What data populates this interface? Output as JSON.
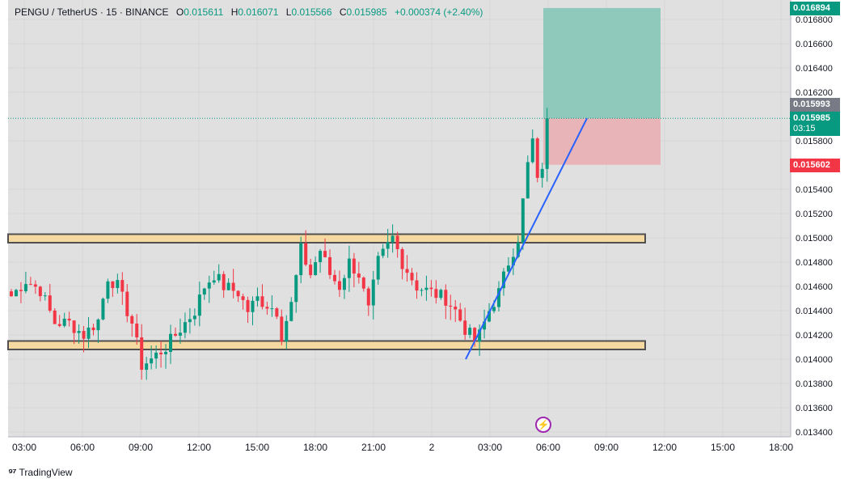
{
  "header": {
    "symbol": "PENGU / TetherUS · 15 · BINANCE",
    "o_label": "O",
    "o_value": "0.015611",
    "h_label": "H",
    "h_value": "0.016071",
    "l_label": "L",
    "l_value": "0.015566",
    "c_label": "C",
    "c_value": "0.015985",
    "change": "+0.000374 (+2.40%)"
  },
  "badges": {
    "take_profit": "0.016894",
    "high_marker": "0.015993",
    "last_price": "0.015985",
    "countdown": "03:15",
    "stop_loss": "0.015602"
  },
  "colors": {
    "up": "#089981",
    "down": "#f23645",
    "zone_fill": "#f5d9a0",
    "zone_border": "#505050",
    "profit_zone": "#8fc9bc",
    "loss_zone": "#e8b4b8",
    "trendline": "#2962ff",
    "background": "#e0e0e0"
  },
  "footer": {
    "brand": "TradingView",
    "logo_icon": "tradingview-logo-icon"
  },
  "chart_data": {
    "type": "candlestick",
    "title": "PENGU / TetherUS · 15 · BINANCE",
    "interval": "15m",
    "x_tick_labels": [
      "03:00",
      "06:00",
      "09:00",
      "12:00",
      "15:00",
      "18:00",
      "21:00",
      "2",
      "03:00",
      "06:00",
      "09:00",
      "12:00",
      "15:00",
      "18:00"
    ],
    "y_tick_labels": [
      "0.016800",
      "0.016600",
      "0.016400",
      "0.016200",
      "0.015800",
      "0.015400",
      "0.015200",
      "0.015000",
      "0.014800",
      "0.014600",
      "0.014400",
      "0.014200",
      "0.014000",
      "0.013800",
      "0.013600",
      "0.013400"
    ],
    "ylim": [
      0.01338,
      0.01704
    ],
    "candle_count": 112,
    "candle_range": [
      0.01383,
      0.01607
    ],
    "last_close": 0.015985,
    "anchors": [
      {
        "i": 0,
        "c": 0.01452
      },
      {
        "i": 3,
        "c": 0.01465
      },
      {
        "i": 6,
        "c": 0.01457
      },
      {
        "i": 9,
        "c": 0.0143
      },
      {
        "i": 12,
        "c": 0.0143
      },
      {
        "i": 15,
        "c": 0.0142
      },
      {
        "i": 18,
        "c": 0.01432
      },
      {
        "i": 20,
        "c": 0.01468
      },
      {
        "i": 22,
        "c": 0.0146
      },
      {
        "i": 25,
        "c": 0.0143
      },
      {
        "i": 27,
        "c": 0.01395
      },
      {
        "i": 29,
        "c": 0.014
      },
      {
        "i": 32,
        "c": 0.0141
      },
      {
        "i": 34,
        "c": 0.0142
      },
      {
        "i": 36,
        "c": 0.0143
      },
      {
        "i": 38,
        "c": 0.0144
      },
      {
        "i": 40,
        "c": 0.0146
      },
      {
        "i": 42,
        "c": 0.0147
      },
      {
        "i": 44,
        "c": 0.0146
      },
      {
        "i": 47,
        "c": 0.01455
      },
      {
        "i": 49,
        "c": 0.0144
      },
      {
        "i": 51,
        "c": 0.0145
      },
      {
        "i": 53,
        "c": 0.01445
      },
      {
        "i": 55,
        "c": 0.0144
      },
      {
        "i": 56,
        "c": 0.0142
      },
      {
        "i": 58,
        "c": 0.01445
      },
      {
        "i": 60,
        "c": 0.0149
      },
      {
        "i": 62,
        "c": 0.0147
      },
      {
        "i": 64,
        "c": 0.0149
      },
      {
        "i": 66,
        "c": 0.0147
      },
      {
        "i": 68,
        "c": 0.0146
      },
      {
        "i": 70,
        "c": 0.0148
      },
      {
        "i": 72,
        "c": 0.0147
      },
      {
        "i": 74,
        "c": 0.0144
      },
      {
        "i": 76,
        "c": 0.0148
      },
      {
        "i": 79,
        "c": 0.015
      },
      {
        "i": 81,
        "c": 0.0148
      },
      {
        "i": 84,
        "c": 0.0146
      },
      {
        "i": 87,
        "c": 0.01455
      },
      {
        "i": 90,
        "c": 0.0145
      },
      {
        "i": 92,
        "c": 0.0144
      },
      {
        "i": 94,
        "c": 0.01425
      },
      {
        "i": 96,
        "c": 0.01415
      },
      {
        "i": 97,
        "c": 0.0142
      },
      {
        "i": 99,
        "c": 0.0144
      },
      {
        "i": 101,
        "c": 0.01455
      },
      {
        "i": 103,
        "c": 0.0148
      },
      {
        "i": 105,
        "c": 0.015
      },
      {
        "i": 107,
        "c": 0.0156
      },
      {
        "i": 108,
        "c": 0.0158
      },
      {
        "i": 109,
        "c": 0.01545
      },
      {
        "i": 110,
        "c": 0.0156
      },
      {
        "i": 111,
        "c": 0.015985
      }
    ],
    "support_zone": [
      0.01408,
      0.01415
    ],
    "resistance_zone": [
      0.01496,
      0.01503
    ],
    "position": {
      "entry": 0.015985,
      "take_profit": 0.016894,
      "stop_loss": 0.015602
    },
    "trendline": {
      "from": 0.014,
      "to": 0.015985
    },
    "current_price_line": 0.015985,
    "grid": true,
    "y_axis_side": "right"
  }
}
